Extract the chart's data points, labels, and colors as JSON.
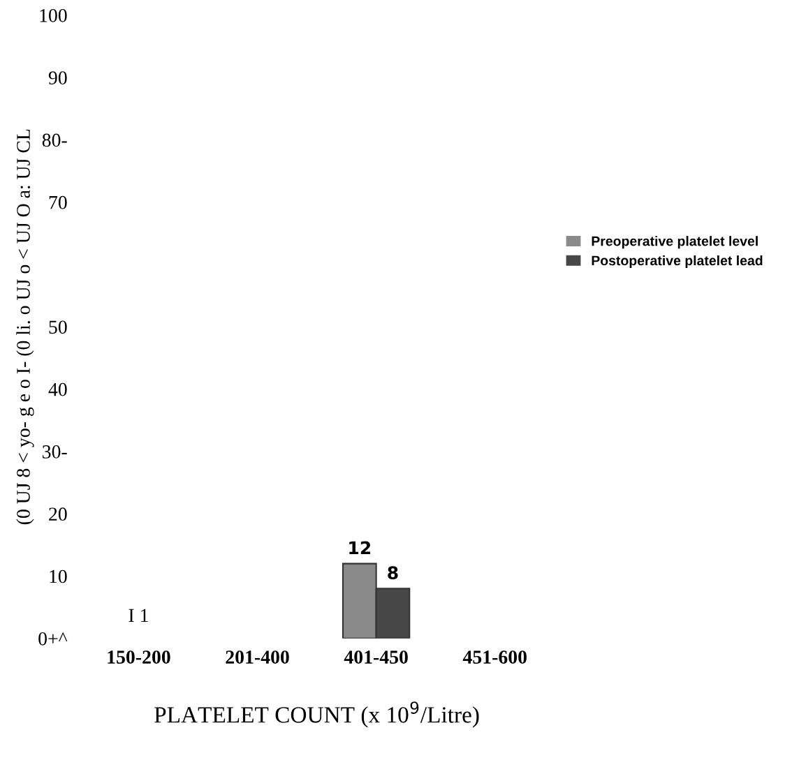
{
  "chart_data": {
    "type": "bar",
    "categories": [
      "150-200",
      "201-400",
      "401-450",
      "451-600"
    ],
    "series": [
      {
        "name": "Preoperative platelet level",
        "color": "#8a8a8a",
        "values": [
          null,
          null,
          12,
          null
        ],
        "value_labels": [
          null,
          null,
          "12",
          null
        ]
      },
      {
        "name": "Postoperative platelet lead",
        "color": "#474747",
        "values": [
          null,
          null,
          8,
          null
        ],
        "value_labels": [
          null,
          null,
          "8",
          null
        ]
      }
    ],
    "xlabel": "PLATELET COUNT (x 10$^{9}$/Litre)",
    "ylabel": "(0 UJ 8 < yo- g e o I- (0 li. o UJ o < UJ O a: UJ CL",
    "ylim": [
      0,
      100
    ],
    "yticks": [
      {
        "value": 0,
        "label": "0+^"
      },
      10,
      20,
      {
        "value": 30,
        "label": "30-"
      },
      40,
      50,
      70,
      {
        "value": 80,
        "label": "80-"
      },
      90,
      100
    ],
    "annotations": [
      "I 1"
    ],
    "legend": "right",
    "grid": false
  }
}
